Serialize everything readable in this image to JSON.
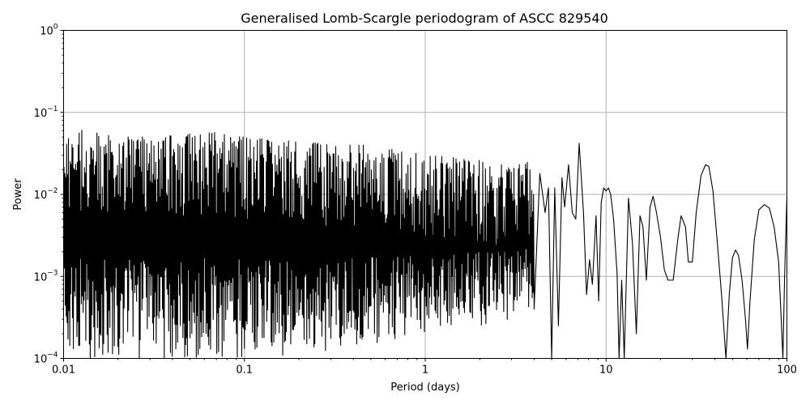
{
  "chart_data": {
    "type": "line",
    "title": "Generalised Lomb-Scargle periodogram of ASCC 829540",
    "xlabel": "Period (days)",
    "ylabel": "Power",
    "xscale": "log",
    "yscale": "log",
    "xlim": [
      0.01,
      100
    ],
    "ylim": [
      0.0001,
      1
    ],
    "grid": true,
    "line_color": "#000000",
    "x_ticks": [
      {
        "value": 0.01,
        "label": "0.01"
      },
      {
        "value": 0.1,
        "label": "0.1"
      },
      {
        "value": 1,
        "label": "1"
      },
      {
        "value": 10,
        "label": "10"
      },
      {
        "value": 100,
        "label": "100"
      }
    ],
    "y_ticks": [
      {
        "value": 0.0001,
        "base": "10",
        "exp": "−4"
      },
      {
        "value": 0.001,
        "base": "10",
        "exp": "−3"
      },
      {
        "value": 0.01,
        "base": "10",
        "exp": "−2"
      },
      {
        "value": 0.1,
        "base": "10",
        "exp": "−1"
      },
      {
        "value": 1,
        "base": "10",
        "exp": "0"
      }
    ],
    "series": [
      {
        "envelope_upper": [
          [
            0.01,
            0.05
          ],
          [
            0.013,
            0.065
          ],
          [
            0.02,
            0.052
          ],
          [
            0.03,
            0.05
          ],
          [
            0.05,
            0.055
          ],
          [
            0.07,
            0.057
          ],
          [
            0.1,
            0.05
          ],
          [
            0.15,
            0.047
          ],
          [
            0.2,
            0.045
          ],
          [
            0.3,
            0.04
          ],
          [
            0.5,
            0.04
          ],
          [
            0.8,
            0.035
          ],
          [
            1.0,
            0.03
          ],
          [
            1.5,
            0.028
          ],
          [
            2.0,
            0.026
          ],
          [
            3.0,
            0.022
          ],
          [
            4.0,
            0.026
          ]
        ],
        "envelope_lower": [
          [
            0.01,
            0.0001
          ],
          [
            0.1,
            0.0001
          ],
          [
            0.3,
            0.00012
          ],
          [
            0.5,
            0.00015
          ],
          [
            1.0,
            0.0002
          ],
          [
            2.0,
            0.00025
          ],
          [
            3.0,
            0.0003
          ],
          [
            4.0,
            0.0004
          ]
        ],
        "points": [
          [
            4.0,
            0.0004
          ],
          [
            4.3,
            0.018
          ],
          [
            4.6,
            0.006
          ],
          [
            4.8,
            0.012
          ],
          [
            5.0,
            0.0001
          ],
          [
            5.2,
            0.012
          ],
          [
            5.45,
            0.00025
          ],
          [
            5.7,
            0.016
          ],
          [
            5.9,
            0.007
          ],
          [
            6.2,
            0.023
          ],
          [
            6.5,
            0.006
          ],
          [
            6.8,
            0.005
          ],
          [
            7.1,
            0.042
          ],
          [
            7.5,
            0.006
          ],
          [
            7.8,
            0.0006
          ],
          [
            8.1,
            0.0016
          ],
          [
            8.4,
            0.0008
          ],
          [
            8.8,
            0.0055
          ],
          [
            9.1,
            0.0005
          ],
          [
            9.4,
            0.008
          ],
          [
            9.7,
            0.012
          ],
          [
            10.0,
            0.011
          ],
          [
            10.3,
            0.012
          ],
          [
            10.6,
            0.01
          ],
          [
            11.0,
            0.005
          ],
          [
            11.5,
            0.0011
          ],
          [
            11.8,
            0.0001
          ],
          [
            12.2,
            0.0009
          ],
          [
            12.6,
            0.0001
          ],
          [
            13.3,
            0.009
          ],
          [
            14.0,
            0.0025
          ],
          [
            14.7,
            0.0002
          ],
          [
            15.4,
            0.0055
          ],
          [
            16.0,
            0.004
          ],
          [
            16.7,
            0.0009
          ],
          [
            17.5,
            0.007
          ],
          [
            18.2,
            0.0095
          ],
          [
            19.0,
            0.006
          ],
          [
            20.0,
            0.003
          ],
          [
            21.0,
            0.0012
          ],
          [
            22.0,
            0.0009
          ],
          [
            23.5,
            0.0009
          ],
          [
            25.0,
            0.003
          ],
          [
            26.0,
            0.0055
          ],
          [
            27.5,
            0.004
          ],
          [
            28.5,
            0.0015
          ],
          [
            30.0,
            0.0015
          ],
          [
            31.5,
            0.006
          ],
          [
            33.5,
            0.017
          ],
          [
            35.5,
            0.023
          ],
          [
            37.0,
            0.022
          ],
          [
            39.0,
            0.011
          ],
          [
            41.0,
            0.003
          ],
          [
            43.5,
            0.0006
          ],
          [
            46.0,
            0.0001
          ],
          [
            48.0,
            0.0006
          ],
          [
            50.0,
            0.0017
          ],
          [
            52.0,
            0.0021
          ],
          [
            54.0,
            0.0018
          ],
          [
            56.5,
            0.0009
          ],
          [
            59.0,
            0.0003
          ],
          [
            60.5,
            0.00013
          ],
          [
            62.5,
            0.0005
          ],
          [
            66.0,
            0.0028
          ],
          [
            70.0,
            0.0065
          ],
          [
            75.0,
            0.0075
          ],
          [
            80.0,
            0.0068
          ],
          [
            85.0,
            0.004
          ],
          [
            90.0,
            0.0015
          ],
          [
            93.0,
            0.0003
          ],
          [
            95.0,
            0.0001
          ],
          [
            97.0,
            0.0009
          ],
          [
            99.0,
            0.0045
          ],
          [
            100.0,
            0.0095
          ]
        ]
      }
    ]
  }
}
